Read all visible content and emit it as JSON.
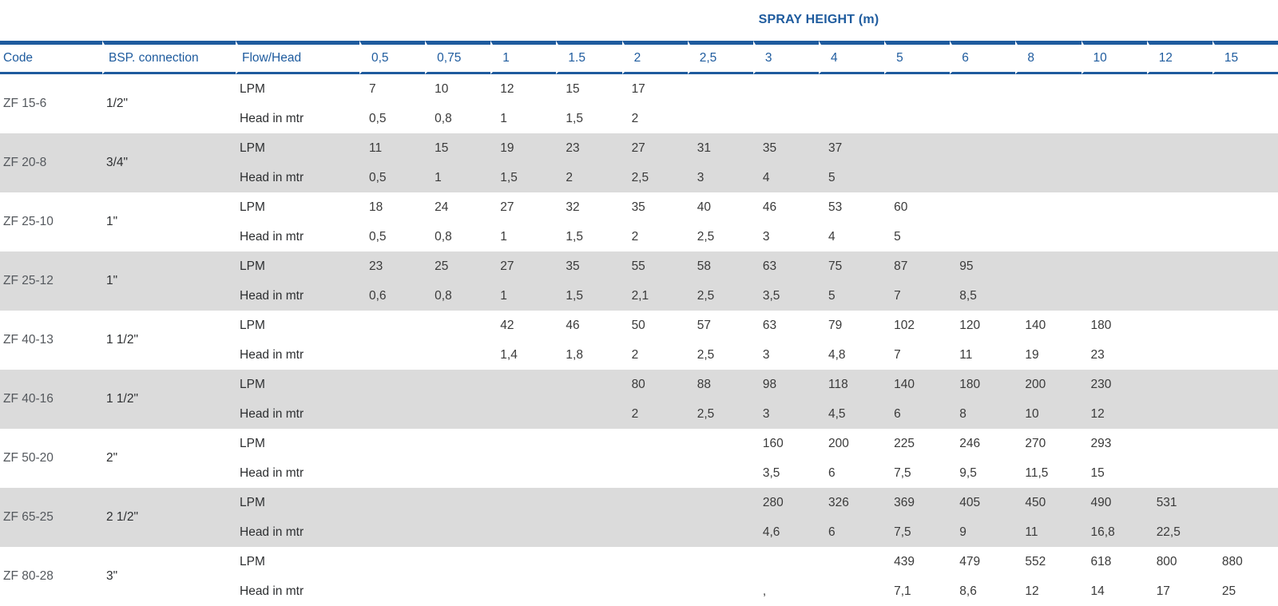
{
  "table": {
    "spray_title": "SPRAY HEIGHT (m)",
    "headers": {
      "code": "Code",
      "bsp": "BSP. connection",
      "flow_head": "Flow/Head"
    },
    "height_columns": [
      "0,5",
      "0,75",
      "1",
      "1.5",
      "2",
      "2,5",
      "3",
      "4",
      "5",
      "6",
      "8",
      "10",
      "12",
      "15"
    ],
    "row_labels": {
      "lpm": "LPM",
      "head": "Head in mtr"
    },
    "accent_color": "#1e5b9e",
    "stripe_color": "#dbdbdb",
    "rows": [
      {
        "code": "ZF 15-6",
        "bsp": "1/2\"",
        "lpm": [
          "7",
          "10",
          "12",
          "15",
          "17",
          "",
          "",
          "",
          "",
          "",
          "",
          "",
          "",
          ""
        ],
        "head": [
          "0,5",
          "0,8",
          "1",
          "1,5",
          "2",
          "",
          "",
          "",
          "",
          "",
          "",
          "",
          "",
          ""
        ]
      },
      {
        "code": "ZF 20-8",
        "bsp": "3/4\"",
        "lpm": [
          "11",
          "15",
          "19",
          "23",
          "27",
          "31",
          "35",
          "37",
          "",
          "",
          "",
          "",
          "",
          ""
        ],
        "head": [
          "0,5",
          "1",
          "1,5",
          "2",
          "2,5",
          "3",
          "4",
          "5",
          "",
          "",
          "",
          "",
          "",
          ""
        ]
      },
      {
        "code": "ZF 25-10",
        "bsp": "1\"",
        "lpm": [
          "18",
          "24",
          "27",
          "32",
          "35",
          "40",
          "46",
          "53",
          "60",
          "",
          "",
          "",
          "",
          ""
        ],
        "head": [
          "0,5",
          "0,8",
          "1",
          "1,5",
          "2",
          "2,5",
          "3",
          "4",
          "5",
          "",
          "",
          "",
          "",
          ""
        ]
      },
      {
        "code": "ZF 25-12",
        "bsp": "1\"",
        "lpm": [
          "23",
          "25",
          "27",
          "35",
          "55",
          "58",
          "63",
          "75",
          "87",
          "95",
          "",
          "",
          "",
          ""
        ],
        "head": [
          "0,6",
          "0,8",
          "1",
          "1,5",
          "2,1",
          "2,5",
          "3,5",
          "5",
          "7",
          "8,5",
          "",
          "",
          "",
          ""
        ]
      },
      {
        "code": "ZF 40-13",
        "bsp": "1 1/2\"",
        "lpm": [
          "",
          "",
          "42",
          "46",
          "50",
          "57",
          "63",
          "79",
          "102",
          "120",
          "140",
          "180",
          "",
          ""
        ],
        "head": [
          "",
          "",
          "1,4",
          "1,8",
          "2",
          "2,5",
          "3",
          "4,8",
          "7",
          "11",
          "19",
          "23",
          "",
          ""
        ]
      },
      {
        "code": "ZF 40-16",
        "bsp": "1 1/2\"",
        "lpm": [
          "",
          "",
          "",
          "",
          "80",
          "88",
          "98",
          "118",
          "140",
          "180",
          "200",
          "230",
          "",
          ""
        ],
        "head": [
          "",
          "",
          "",
          "",
          "2",
          "2,5",
          "3",
          "4,5",
          "6",
          "8",
          "10",
          "12",
          "",
          ""
        ]
      },
      {
        "code": "ZF 50-20",
        "bsp": "2\"",
        "lpm": [
          "",
          "",
          "",
          "",
          "",
          "",
          "160",
          "200",
          "225",
          "246",
          "270",
          "293",
          "",
          ""
        ],
        "head": [
          "",
          "",
          "",
          "",
          "",
          "",
          "3,5",
          "6",
          "7,5",
          "9,5",
          "11,5",
          "15",
          "",
          ""
        ]
      },
      {
        "code": "ZF 65-25",
        "bsp": "2 1/2\"",
        "lpm": [
          "",
          "",
          "",
          "",
          "",
          "",
          "280",
          "326",
          "369",
          "405",
          "450",
          "490",
          "531",
          ""
        ],
        "head": [
          "",
          "",
          "",
          "",
          "",
          "",
          "4,6",
          "6",
          "7,5",
          "9",
          "11",
          "16,8",
          "22,5",
          ""
        ]
      },
      {
        "code": "ZF 80-28",
        "bsp": "3\"",
        "lpm": [
          "",
          "",
          "",
          "",
          "",
          "",
          "",
          "",
          "439",
          "479",
          "552",
          "618",
          "800",
          "880"
        ],
        "head": [
          "",
          "",
          "",
          "",
          "",
          "",
          ", ",
          "",
          "7,1",
          "8,6",
          "12",
          "14",
          "17",
          "25"
        ]
      }
    ]
  }
}
